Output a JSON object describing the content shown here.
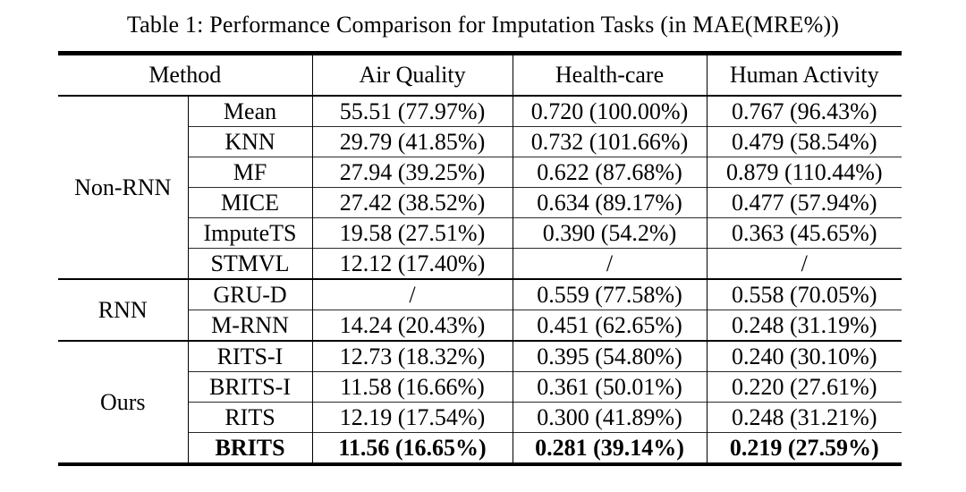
{
  "colors": {
    "background": "#ffffff",
    "text": "#000000",
    "rule": "#000000"
  },
  "title": "Table 1: Performance Comparison for Imputation Tasks (in MAE(MRE%))",
  "table": {
    "headers": {
      "method": "Method",
      "air_quality": "Air Quality",
      "health_care": "Health-care",
      "human_activity": "Human Activity"
    },
    "groups": [
      {
        "label": "Non-RNN",
        "rows": [
          {
            "method": "Mean",
            "air_quality": "55.51 (77.97%)",
            "health_care": "0.720 (100.00%)",
            "human_activity": "0.767 (96.43%)"
          },
          {
            "method": "KNN",
            "air_quality": "29.79 (41.85%)",
            "health_care": "0.732 (101.66%)",
            "human_activity": "0.479 (58.54%)"
          },
          {
            "method": "MF",
            "air_quality": "27.94 (39.25%)",
            "health_care": "0.622 (87.68%)",
            "human_activity": "0.879 (110.44%)"
          },
          {
            "method": "MICE",
            "air_quality": "27.42 (38.52%)",
            "health_care": "0.634 (89.17%)",
            "human_activity": "0.477 (57.94%)"
          },
          {
            "method": "ImputeTS",
            "air_quality": "19.58 (27.51%)",
            "health_care": "0.390 (54.2%)",
            "human_activity": "0.363 (45.65%)"
          },
          {
            "method": "STMVL",
            "air_quality": "12.12 (17.40%)",
            "health_care": "/",
            "human_activity": "/"
          }
        ]
      },
      {
        "label": "RNN",
        "rows": [
          {
            "method": "GRU-D",
            "air_quality": "/",
            "health_care": "0.559 (77.58%)",
            "human_activity": "0.558 (70.05%)"
          },
          {
            "method": "M-RNN",
            "air_quality": "14.24 (20.43%)",
            "health_care": "0.451 (62.65%)",
            "human_activity": "0.248 (31.19%)"
          }
        ]
      },
      {
        "label": "Ours",
        "rows": [
          {
            "method": "RITS-I",
            "air_quality": "12.73 (18.32%)",
            "health_care": "0.395 (54.80%)",
            "human_activity": "0.240 (30.10%)"
          },
          {
            "method": "BRITS-I",
            "air_quality": "11.58 (16.66%)",
            "health_care": "0.361 (50.01%)",
            "human_activity": "0.220 (27.61%)"
          },
          {
            "method": "RITS",
            "air_quality": "12.19 (17.54%)",
            "health_care": "0.300 (41.89%)",
            "human_activity": "0.248 (31.21%)"
          },
          {
            "method": "BRITS",
            "air_quality": "11.56 (16.65%)",
            "health_care": "0.281 (39.14%)",
            "human_activity": "0.219 (27.59%)",
            "bold": true
          }
        ]
      }
    ]
  }
}
